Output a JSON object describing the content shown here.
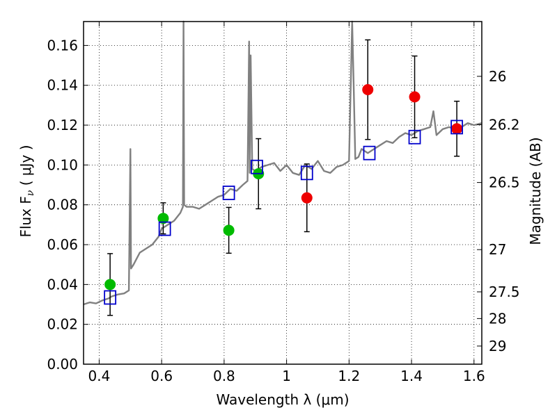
{
  "chart_data": {
    "type": "scatter",
    "xlabel": "Wavelength  λ (μm)",
    "ylabel": "Flux  F",
    "ylabel_sub": "ν",
    "ylabel_unit": " ( μJy )",
    "y2label": "Magnitude (AB)",
    "xlim": [
      0.35,
      1.625
    ],
    "ylim": [
      0.0,
      0.172
    ],
    "grid": true,
    "x_ticks": [
      0.4,
      0.6,
      0.8,
      1.0,
      1.2,
      1.4,
      1.6
    ],
    "x_tick_labels": [
      "0.4",
      "0.6",
      "0.8",
      "1",
      "1.2",
      "1.4",
      "1.6"
    ],
    "y_ticks": [
      0.0,
      0.02,
      0.04,
      0.06,
      0.08,
      0.1,
      0.12,
      0.14,
      0.16
    ],
    "y_tick_labels": [
      "0.00",
      "0.02",
      "0.04",
      "0.06",
      "0.08",
      "0.10",
      "0.12",
      "0.14",
      "0.16"
    ],
    "y2_ticks": [
      {
        "label": "26",
        "flux": 0.1445
      },
      {
        "label": "26.2",
        "flux": 0.1202
      },
      {
        "label": "26.5",
        "flux": 0.0912
      },
      {
        "label": "27",
        "flux": 0.0575
      },
      {
        "label": "27.5",
        "flux": 0.0363
      },
      {
        "label": "28",
        "flux": 0.0229
      },
      {
        "label": "29",
        "flux": 0.0091
      }
    ],
    "colors": {
      "spectrum": "#808080",
      "green_points": "#00bb00",
      "red_points": "#ee0000",
      "model_boxes": "#0000cc",
      "error_bars": "#000000"
    },
    "series": [
      {
        "x": [
          0.35,
          0.37,
          0.39,
          0.41,
          0.43,
          0.44,
          0.46,
          0.48,
          0.495,
          0.5,
          0.502,
          0.51,
          0.52,
          0.53,
          0.55,
          0.57,
          0.59,
          0.6,
          0.62,
          0.64,
          0.66,
          0.668,
          0.67,
          0.672,
          0.68,
          0.7,
          0.72,
          0.74,
          0.76,
          0.78,
          0.8,
          0.82,
          0.84,
          0.86,
          0.875,
          0.88,
          0.882,
          0.885,
          0.89,
          0.9,
          0.92,
          0.94,
          0.96,
          0.98,
          1.0,
          1.02,
          1.04,
          1.06,
          1.08,
          1.1,
          1.12,
          1.14,
          1.16,
          1.18,
          1.2,
          1.21,
          1.215,
          1.22,
          1.23,
          1.24,
          1.26,
          1.28,
          1.3,
          1.32,
          1.34,
          1.36,
          1.38,
          1.4,
          1.42,
          1.44,
          1.46,
          1.47,
          1.48,
          1.5,
          1.52,
          1.54,
          1.56,
          1.58,
          1.6,
          1.625
        ],
        "y": [
          0.03,
          0.031,
          0.0305,
          0.032,
          0.033,
          0.034,
          0.035,
          0.0355,
          0.037,
          0.108,
          0.048,
          0.05,
          0.053,
          0.056,
          0.058,
          0.06,
          0.064,
          0.068,
          0.07,
          0.072,
          0.076,
          0.079,
          0.172,
          0.08,
          0.079,
          0.079,
          0.078,
          0.08,
          0.082,
          0.084,
          0.085,
          0.088,
          0.087,
          0.09,
          0.092,
          0.162,
          0.096,
          0.155,
          0.098,
          0.097,
          0.099,
          0.1,
          0.101,
          0.097,
          0.1,
          0.096,
          0.095,
          0.1,
          0.098,
          0.102,
          0.097,
          0.096,
          0.099,
          0.1,
          0.102,
          0.172,
          0.138,
          0.103,
          0.104,
          0.108,
          0.106,
          0.108,
          0.11,
          0.112,
          0.111,
          0.114,
          0.116,
          0.115,
          0.117,
          0.118,
          0.119,
          0.127,
          0.115,
          0.118,
          0.119,
          0.118,
          0.119,
          0.121,
          0.12,
          0.121
        ]
      },
      {
        "x": [
          0.435,
          0.605,
          0.815,
          0.91
        ],
        "y": [
          0.04,
          0.0732,
          0.0672,
          0.0956
        ],
        "yerr": [
          0.0155,
          0.0078,
          0.0115,
          0.0176
        ]
      },
      {
        "x": [
          1.065,
          1.26,
          1.41,
          1.545
        ],
        "y": [
          0.0835,
          0.1378,
          0.1342,
          0.1182
        ],
        "yerr": [
          0.017,
          0.025,
          0.0205,
          0.0138
        ]
      },
      {
        "x": [
          0.435,
          0.61,
          0.815,
          0.905,
          1.065,
          1.265,
          1.41,
          1.545
        ],
        "y": [
          0.0335,
          0.068,
          0.086,
          0.099,
          0.096,
          0.106,
          0.114,
          0.119
        ]
      }
    ]
  }
}
